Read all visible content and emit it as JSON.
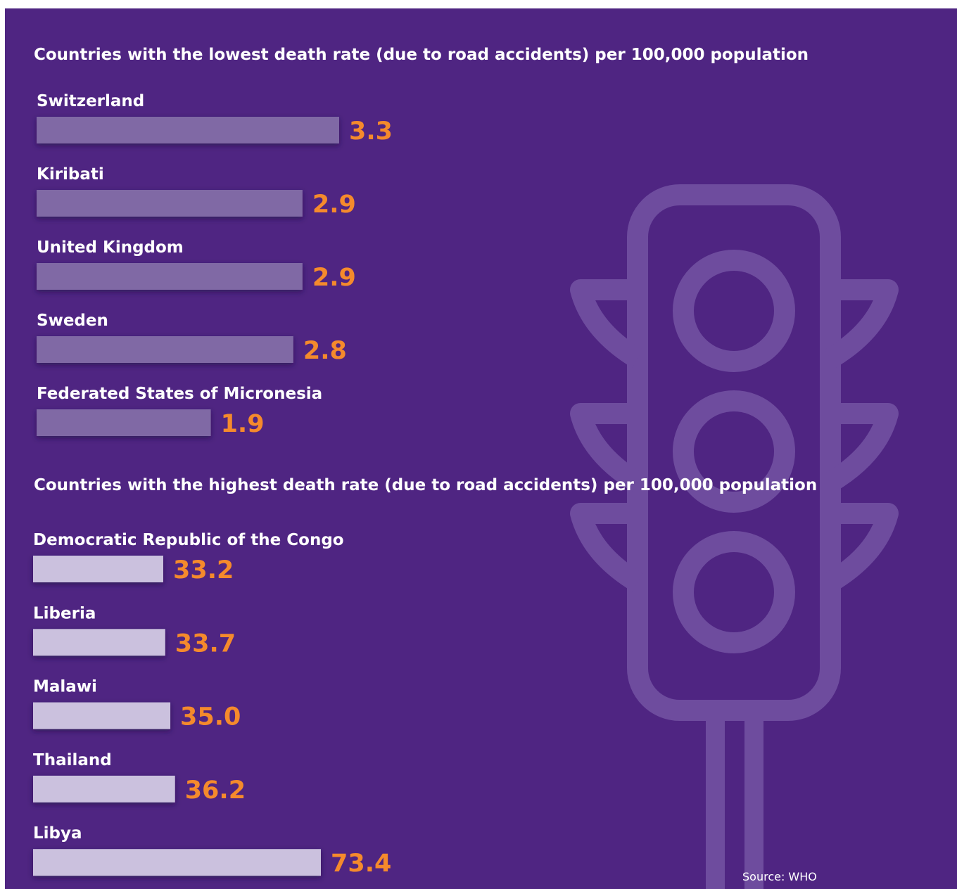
{
  "chart_data": [
    {
      "type": "bar",
      "orientation": "horizontal",
      "title": "Countries with the lowest death rate (due to road accidents) per 100,000 population",
      "categories": [
        "Switzerland",
        "Kiribati",
        "United Kingdom",
        "Sweden",
        "Federated States of Micronesia"
      ],
      "values": [
        3.3,
        2.9,
        2.9,
        2.8,
        1.9
      ],
      "color": "#8069a5",
      "label_color": "#f58a2c"
    },
    {
      "type": "bar",
      "orientation": "horizontal",
      "title": "Countries with the highest death rate (due to road accidents) per 100,000 population",
      "categories": [
        "Democratic Republic of the Congo",
        "Liberia",
        "Malawi",
        "Thailand",
        "Libya"
      ],
      "values": [
        33.2,
        33.7,
        35.0,
        36.2,
        73.4
      ],
      "value_labels": [
        "33.2",
        "33.7",
        "35.0",
        "36.2",
        "73.4"
      ],
      "color": "#cbc1de",
      "label_color": "#f58a2c"
    }
  ],
  "source": "Source: WHO"
}
